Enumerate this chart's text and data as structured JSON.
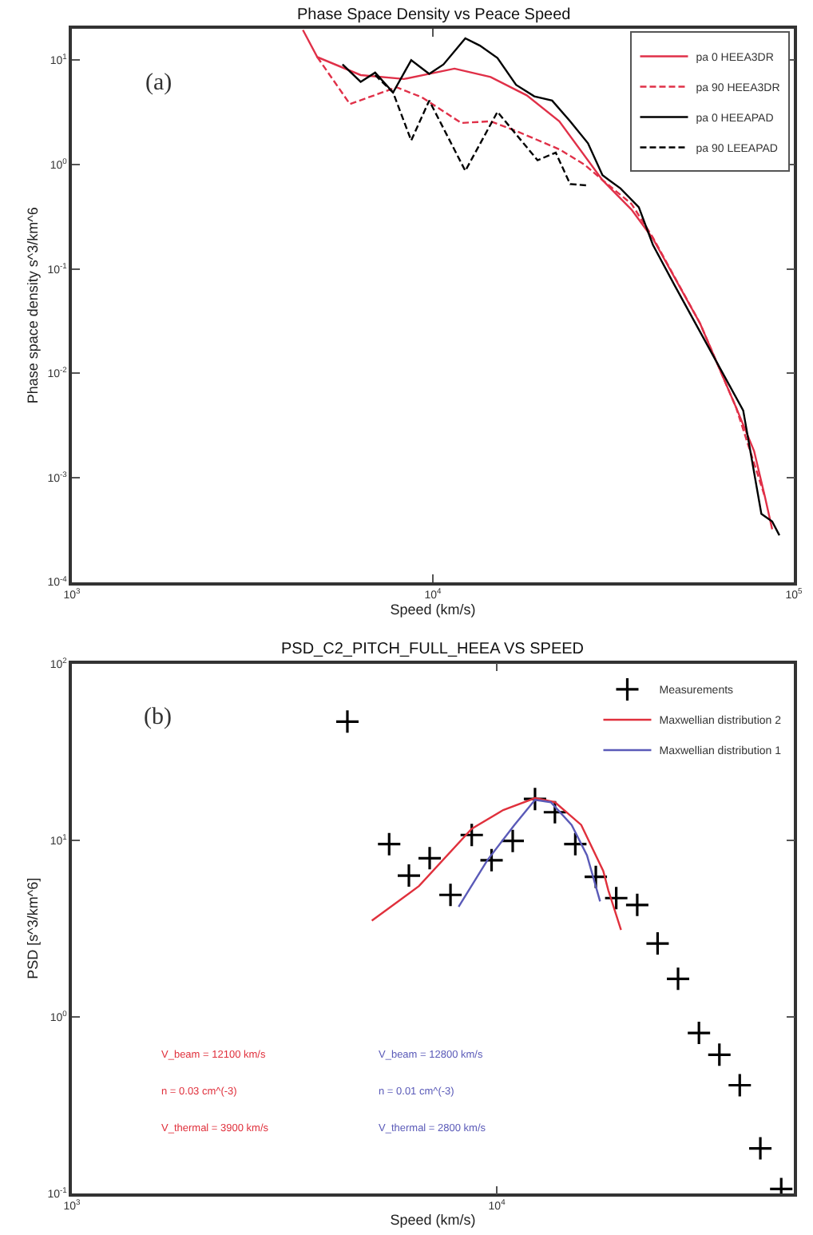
{
  "chart_data": [
    {
      "type": "line",
      "title": "Phase Space Density vs Peace Speed",
      "xlabel": "Speed (km/s)",
      "ylabel": "Phase space density s^3/km^6",
      "log": "xy",
      "legend": "top right",
      "xlim": [
        1000,
        100000
      ],
      "xticks": [
        {
          "value": 1000,
          "label": "10$^{3}$"
        },
        {
          "value": 10000,
          "label": "10$^{4}$"
        },
        {
          "value": 100000,
          "label": "10$^{5}$"
        }
      ],
      "ylim": [
        0.0001,
        20
      ],
      "yticks": [
        {
          "value": 0.0001,
          "label": "10$^{-4}$"
        },
        {
          "value": 0.001,
          "label": "10$^{-3}$"
        },
        {
          "value": 0.01,
          "label": "10$^{-2}$"
        },
        {
          "value": 0.1,
          "label": "10$^{-1}$"
        },
        {
          "value": 1,
          "label": "10$^{0}$"
        },
        {
          "value": 10,
          "label": "10$^{1}$"
        }
      ],
      "annotations": [
        "(a)"
      ],
      "series": [
        {
          "name": "pa 0 HEEA3DR",
          "color": "#e03048",
          "line_style": "solid",
          "x": [
            4365,
            4786,
            6310,
            8318,
            11480,
            14450,
            18200,
            22400,
            29500,
            35500,
            40700,
            55000,
            69200,
            77600,
            83200,
            87100
          ],
          "values": [
            19.5,
            10.7,
            7.2,
            6.6,
            8.3,
            6.9,
            4.6,
            2.6,
            0.71,
            0.37,
            0.195,
            0.03,
            0.0047,
            0.0018,
            0.00065,
            0.00032
          ]
        },
        {
          "name": "pa 90 HEEA3DR",
          "color": "#e03048",
          "line_style": "dashed",
          "x": [
            4786,
            5890,
            7940,
            9330,
            12000,
            14450,
            17000,
            22400,
            26300,
            29500,
            35500,
            40700,
            55000,
            69200,
            83200
          ],
          "values": [
            10.7,
            3.8,
            5.5,
            4.4,
            2.5,
            2.6,
            2.1,
            1.4,
            1.0,
            0.71,
            0.42,
            0.2,
            0.03,
            0.0047,
            0.00065
          ]
        },
        {
          "name": "pa 0 HEEAPAD",
          "color": "#000000",
          "line_style": "solid",
          "x": [
            5620,
            6310,
            6920,
            7760,
            8710,
            9770,
            10700,
            12300,
            13500,
            15100,
            17000,
            19100,
            21400,
            24000,
            26900,
            29500,
            33100,
            37200,
            40700,
            46800,
            53700,
            72400,
            81300,
            87100,
            91200
          ],
          "values": [
            9.1,
            6.2,
            7.6,
            4.9,
            10.0,
            7.4,
            9.1,
            16.2,
            13.8,
            10.5,
            5.8,
            4.5,
            4.1,
            2.6,
            1.6,
            0.79,
            0.59,
            0.39,
            0.17,
            0.069,
            0.029,
            0.0044,
            0.00045,
            0.00038,
            0.00028
          ]
        },
        {
          "name": "pa 90 LEEAPAD",
          "color": "#000000",
          "line_style": "dashed",
          "x": [
            6920,
            7760,
            8710,
            9770,
            12300,
            15100,
            19500,
            21900,
            24000,
            26900
          ],
          "values": [
            7.2,
            4.9,
            1.7,
            4.1,
            0.87,
            3.2,
            1.1,
            1.3,
            0.65,
            0.63
          ]
        }
      ]
    },
    {
      "type": "scatter",
      "title": "PSD_C2_PITCH_FULL_HEEA VS SPEED",
      "xlabel": "Speed (km/s)",
      "ylabel": "PSD [s^3/km^6]",
      "log": "xy",
      "legend": "top right",
      "xlim": [
        1000,
        50000
      ],
      "xticks": [
        {
          "value": 1000,
          "label": "10$^{3}$"
        },
        {
          "value": 10000,
          "label": "10$^{4}$"
        }
      ],
      "ylim": [
        0.1,
        100
      ],
      "yticks": [
        {
          "value": 0.1,
          "label": "10$^{-1}$"
        },
        {
          "value": 1,
          "label": "10$^{0}$"
        },
        {
          "value": 10,
          "label": "10$^{1}$"
        },
        {
          "value": 100,
          "label": "10$^{2}$"
        }
      ],
      "annotations": [
        "(b)",
        "V_beam = 12100 km/s",
        "n = 0.03 cm^(-3)",
        "V_thermal = 3900 km/s",
        "V_beam = 12800 km/s",
        "n = 0.01 cm^(-3)",
        "V_thermal = 2800 km/s"
      ],
      "series": [
        {
          "name": "Measurements",
          "type": "scatter",
          "marker": "cross",
          "color": "#000000",
          "x": [
            4450,
            5580,
            6210,
            6950,
            7780,
            8730,
            9720,
            10900,
            12300,
            13700,
            15300,
            17100,
            19100,
            21400,
            23900,
            26700,
            29900,
            33400,
            37300,
            41700,
            46700
          ],
          "values": [
            46.9,
            9.5,
            6.3,
            7.9,
            4.9,
            10.7,
            7.7,
            9.9,
            17.1,
            14.4,
            9.5,
            6.2,
            4.7,
            4.3,
            2.6,
            1.64,
            0.81,
            0.61,
            0.41,
            0.18,
            0.106
          ]
        },
        {
          "name": "Maxwellian distribution 2",
          "type": "line",
          "color": "#e0303c",
          "x": [
            5080,
            6560,
            8730,
            10350,
            12300,
            13700,
            15800,
            17800,
            18300,
            19600
          ],
          "values": [
            3.5,
            5.5,
            11.6,
            14.8,
            17.3,
            16.4,
            12.2,
            6.7,
            5.2,
            3.1
          ]
        },
        {
          "name": "Maxwellian distribution 1",
          "type": "line",
          "color": "#5a5ab8",
          "x": [
            8130,
            9500,
            11000,
            12300,
            13400,
            15000,
            16300,
            17500
          ],
          "values": [
            4.2,
            7.7,
            12.2,
            16.9,
            16.4,
            12.2,
            8.2,
            4.5
          ]
        }
      ]
    }
  ]
}
